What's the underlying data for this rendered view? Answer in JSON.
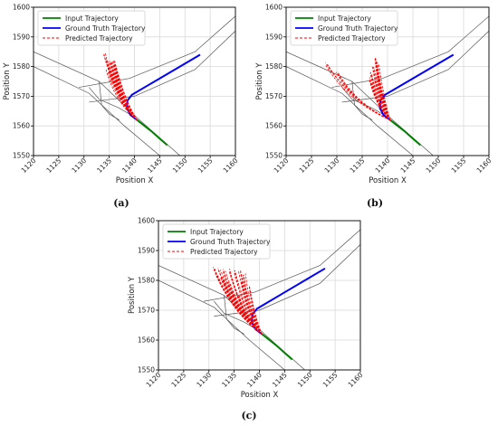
{
  "figure": {
    "captions": [
      "(a)",
      "(b)",
      "(c)"
    ]
  },
  "chart_data": [
    {
      "type": "line",
      "panel": "(a)",
      "xlabel": "Position X",
      "ylabel": "Position Y",
      "xlim": [
        1120,
        1160
      ],
      "ylim": [
        1550,
        1600
      ],
      "xticks": [
        1120,
        1125,
        1130,
        1135,
        1140,
        1145,
        1150,
        1155,
        1160
      ],
      "yticks": [
        1550,
        1560,
        1570,
        1580,
        1590,
        1600
      ],
      "grid": true,
      "legend_position": "top-left",
      "road_lines": [
        [
          [
            1120,
            1585
          ],
          [
            1133,
            1575
          ],
          [
            1141,
            1562
          ],
          [
            1149,
            1550
          ]
        ],
        [
          [
            1120,
            1580
          ],
          [
            1131,
            1571
          ],
          [
            1138,
            1560
          ],
          [
            1145,
            1550
          ]
        ],
        [
          [
            1129,
            1573
          ],
          [
            1139,
            1576
          ],
          [
            1152,
            1585
          ],
          [
            1160,
            1597
          ]
        ],
        [
          [
            1131,
            1568
          ],
          [
            1140,
            1570
          ],
          [
            1152,
            1579
          ],
          [
            1160,
            1592
          ]
        ],
        [
          [
            1131,
            1573
          ],
          [
            1133,
            1569
          ],
          [
            1137,
            1566
          ],
          [
            1140,
            1563
          ]
        ],
        [
          [
            1133,
            1575
          ],
          [
            1133.5,
            1567
          ],
          [
            1135,
            1564
          ],
          [
            1137,
            1562
          ]
        ]
      ],
      "series": [
        {
          "name": "Input Trajectory",
          "color": "#008000",
          "style": "solid",
          "x": [
            1140.5,
            1142,
            1143.5,
            1145,
            1146.5
          ],
          "y": [
            1562,
            1560,
            1558,
            1555.7,
            1553.5
          ]
        },
        {
          "name": "Ground Truth Trajectory",
          "color": "#0000ff",
          "style": "solid",
          "x": [
            1140.5,
            1139.2,
            1138.5,
            1138.6,
            1139.5,
            1141.5,
            1145,
            1149,
            1153
          ],
          "y": [
            1562,
            1563.7,
            1566,
            1568.5,
            1570.5,
            1572.5,
            1576,
            1580,
            1584
          ]
        },
        {
          "name": "Predicted Trajectory",
          "color": "#ff0000",
          "style": "dashed",
          "fan": {
            "origin": [
              1140.5,
              1562
            ],
            "tips": [
              [
                1134,
                1584
              ],
              [
                1134.5,
                1583
              ],
              [
                1135,
                1582
              ],
              [
                1135.5,
                1581.5
              ],
              [
                1136,
                1581
              ],
              [
                1136.2,
                1580
              ],
              [
                1135.8,
                1582
              ],
              [
                1134.8,
                1580
              ],
              [
                1135.3,
                1578
              ],
              [
                1136.4,
                1577
              ],
              [
                1134.6,
                1578.5
              ],
              [
                1136.6,
                1575
              ]
            ]
          }
        }
      ]
    },
    {
      "type": "line",
      "panel": "(b)",
      "xlabel": "Position X",
      "ylabel": "Position Y",
      "xlim": [
        1120,
        1160
      ],
      "ylim": [
        1550,
        1600
      ],
      "xticks": [
        1120,
        1125,
        1130,
        1135,
        1140,
        1145,
        1150,
        1155,
        1160
      ],
      "yticks": [
        1550,
        1560,
        1570,
        1580,
        1590,
        1600
      ],
      "grid": true,
      "legend_position": "top-left",
      "road_lines": [
        [
          [
            1120,
            1585
          ],
          [
            1133,
            1575
          ],
          [
            1141,
            1562
          ],
          [
            1149,
            1550
          ]
        ],
        [
          [
            1120,
            1580
          ],
          [
            1131,
            1571
          ],
          [
            1138,
            1560
          ],
          [
            1145,
            1550
          ]
        ],
        [
          [
            1129,
            1573
          ],
          [
            1139,
            1576
          ],
          [
            1152,
            1585
          ],
          [
            1160,
            1597
          ]
        ],
        [
          [
            1131,
            1568
          ],
          [
            1140,
            1570
          ],
          [
            1152,
            1579
          ],
          [
            1160,
            1592
          ]
        ],
        [
          [
            1131,
            1573
          ],
          [
            1133,
            1569
          ],
          [
            1137,
            1566
          ],
          [
            1140,
            1563
          ]
        ],
        [
          [
            1133,
            1575
          ],
          [
            1133.5,
            1567
          ],
          [
            1135,
            1564
          ],
          [
            1137,
            1562
          ]
        ]
      ],
      "series": [
        {
          "name": "Input Trajectory",
          "color": "#008000",
          "style": "solid",
          "x": [
            1140.5,
            1142,
            1143.5,
            1145,
            1146.5
          ],
          "y": [
            1562,
            1560,
            1558,
            1555.7,
            1553.5
          ]
        },
        {
          "name": "Ground Truth Trajectory",
          "color": "#0000ff",
          "style": "solid",
          "x": [
            1140.5,
            1139.2,
            1138.5,
            1138.6,
            1139.5,
            1141.5,
            1145,
            1149,
            1153
          ],
          "y": [
            1562,
            1563.7,
            1566,
            1568.5,
            1570.5,
            1572.5,
            1576,
            1580,
            1584
          ]
        },
        {
          "name": "Predicted Trajectory",
          "color": "#ff0000",
          "style": "dashed",
          "fan": {
            "origin": [
              1140.5,
              1562
            ],
            "tips": [
              [
                1128,
                1581
              ],
              [
                1130,
                1578
              ],
              [
                1137.5,
                1583
              ],
              [
                1137.8,
                1582
              ],
              [
                1138,
                1581
              ],
              [
                1137.2,
                1580
              ],
              [
                1136.8,
                1578
              ],
              [
                1138.1,
                1577
              ],
              [
                1137.5,
                1575
              ],
              [
                1136.5,
                1576
              ],
              [
                1138,
                1579
              ],
              [
                1137,
                1574
              ]
            ]
          }
        }
      ]
    },
    {
      "type": "line",
      "panel": "(c)",
      "xlabel": "Position X",
      "ylabel": "Position Y",
      "xlim": [
        1120,
        1160
      ],
      "ylim": [
        1550,
        1600
      ],
      "xticks": [
        1120,
        1125,
        1130,
        1135,
        1140,
        1145,
        1150,
        1155,
        1160
      ],
      "yticks": [
        1550,
        1560,
        1570,
        1580,
        1590,
        1600
      ],
      "grid": true,
      "legend_position": "top-left",
      "road_lines": [
        [
          [
            1120,
            1585
          ],
          [
            1133,
            1575
          ],
          [
            1141,
            1562
          ],
          [
            1149,
            1550
          ]
        ],
        [
          [
            1120,
            1580
          ],
          [
            1131,
            1571
          ],
          [
            1138,
            1560
          ],
          [
            1145,
            1550
          ]
        ],
        [
          [
            1129,
            1573
          ],
          [
            1139,
            1576
          ],
          [
            1152,
            1585
          ],
          [
            1160,
            1597
          ]
        ],
        [
          [
            1131,
            1568
          ],
          [
            1140,
            1570
          ],
          [
            1152,
            1579
          ],
          [
            1160,
            1592
          ]
        ],
        [
          [
            1131,
            1573
          ],
          [
            1133,
            1569
          ],
          [
            1137,
            1566
          ],
          [
            1140,
            1563
          ]
        ],
        [
          [
            1133,
            1575
          ],
          [
            1133.5,
            1567
          ],
          [
            1135,
            1564
          ],
          [
            1137,
            1562
          ]
        ]
      ],
      "series": [
        {
          "name": "Input Trajectory",
          "color": "#008000",
          "style": "solid",
          "x": [
            1140.5,
            1142,
            1143.5,
            1145,
            1146.5
          ],
          "y": [
            1562,
            1560,
            1558,
            1555.7,
            1553.5
          ]
        },
        {
          "name": "Ground Truth Trajectory",
          "color": "#0000ff",
          "style": "solid",
          "x": [
            1140.5,
            1139.2,
            1138.5,
            1138.6,
            1139.5,
            1141.5,
            1145,
            1149,
            1153
          ],
          "y": [
            1562,
            1563.7,
            1566,
            1568.5,
            1570.5,
            1572.5,
            1576,
            1580,
            1584
          ]
        },
        {
          "name": "Predicted Trajectory",
          "color": "#ff0000",
          "style": "dashed",
          "fan": {
            "origin": [
              1140.5,
              1562
            ],
            "tips": [
              [
                1131,
                1584
              ],
              [
                1132,
                1584
              ],
              [
                1133,
                1583.5
              ],
              [
                1134,
                1583.5
              ],
              [
                1135,
                1583
              ],
              [
                1136,
                1583
              ],
              [
                1137,
                1582
              ],
              [
                1131.5,
                1582
              ],
              [
                1132.5,
                1581
              ],
              [
                1133,
                1580
              ],
              [
                1134,
                1579
              ],
              [
                1138,
                1578
              ],
              [
                1136.5,
                1580
              ],
              [
                1135,
                1578
              ],
              [
                1134.5,
                1576
              ],
              [
                1136,
                1575
              ]
            ]
          }
        }
      ]
    }
  ]
}
